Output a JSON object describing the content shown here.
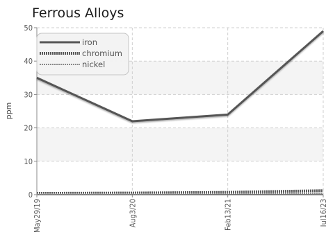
{
  "chart_data": {
    "type": "line",
    "title": "Ferrous Alloys",
    "xlabel": "",
    "ylabel": "ppm",
    "categories": [
      "May29/19",
      "Aug3/20",
      "Feb13/21",
      "Jul16/23"
    ],
    "ylim": [
      0,
      50
    ],
    "yticks": [
      0,
      10,
      20,
      30,
      40,
      50
    ],
    "grid": true,
    "legend_position": "top-left",
    "series": [
      {
        "name": "iron",
        "values": [
          35,
          22,
          24,
          49
        ],
        "color": "#555555",
        "style": "solid"
      },
      {
        "name": "chromium",
        "values": [
          0.4,
          0.5,
          0.7,
          1.2
        ],
        "color": "#5a5a5a",
        "style": "dotted-thick"
      },
      {
        "name": "nickel",
        "values": [
          0.2,
          0.2,
          0.3,
          0.4
        ],
        "color": "#8a8a8a",
        "style": "dotted-thin"
      }
    ]
  }
}
